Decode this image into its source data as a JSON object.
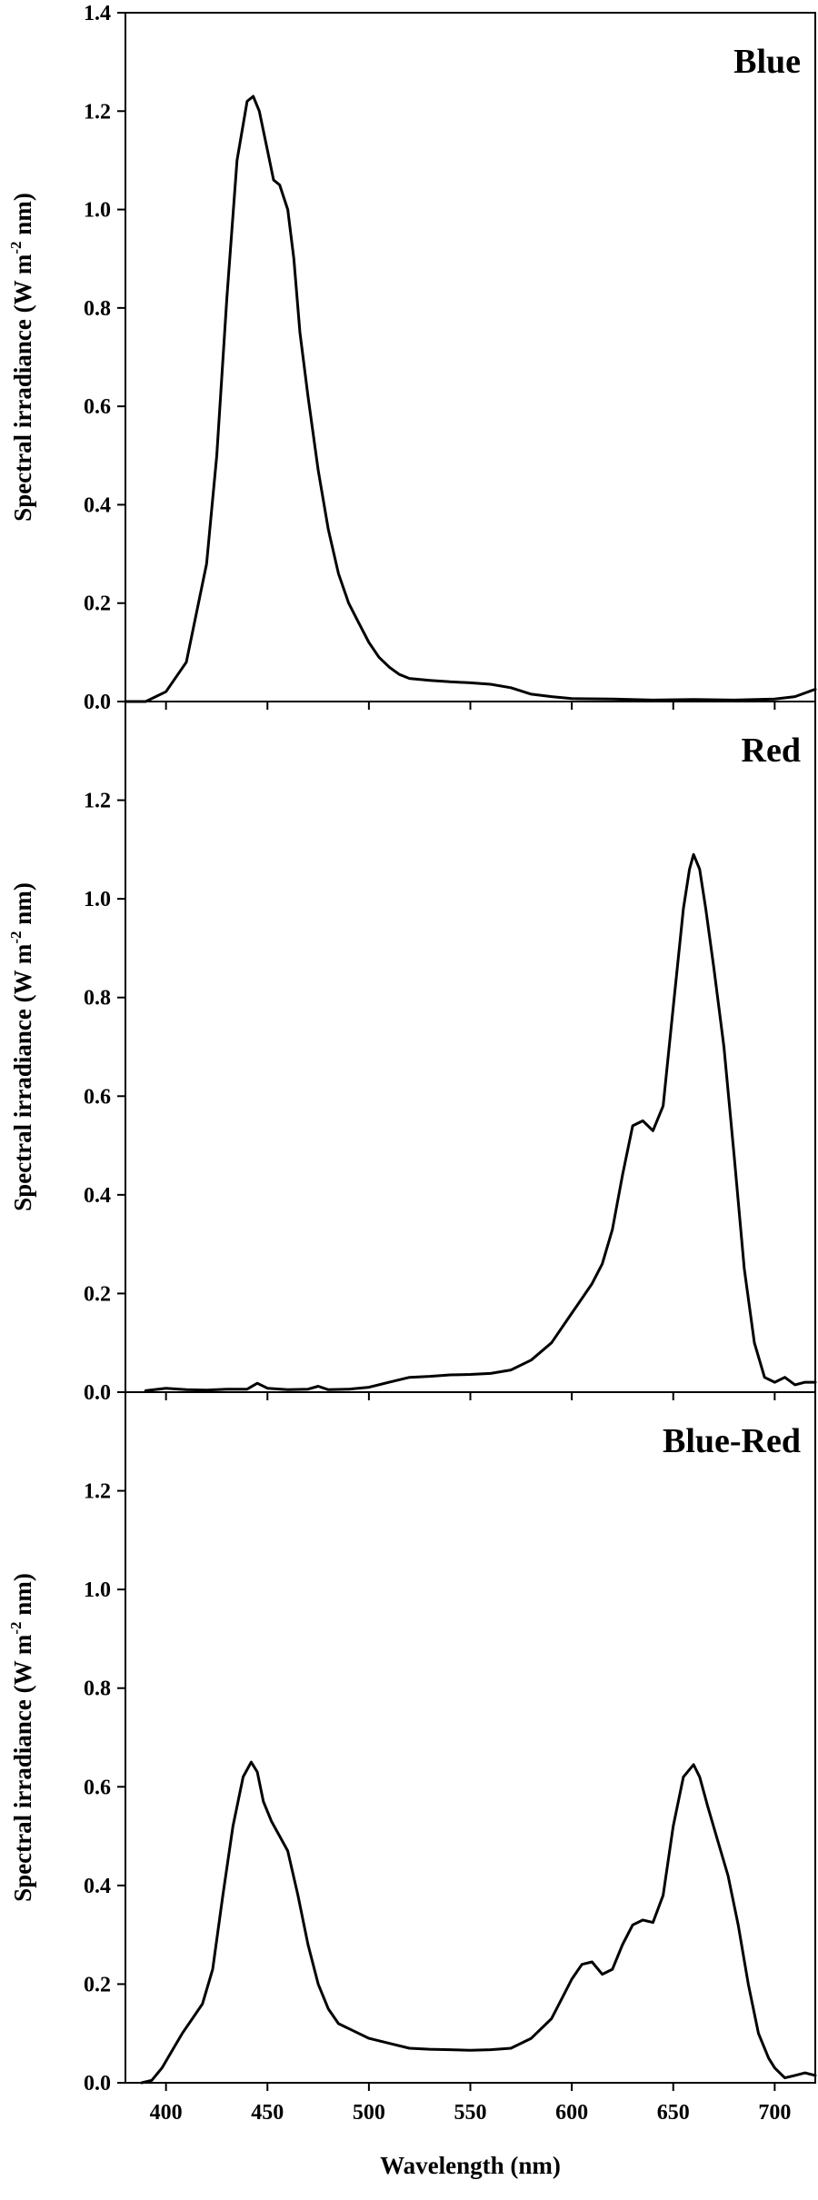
{
  "chart_data": [
    {
      "type": "line",
      "title": "Blue",
      "ylabel": {
        "main": "Spectral irradiance (W m",
        "sup": "-2",
        "tail": " nm)"
      },
      "xlim": [
        380,
        720
      ],
      "ylim": [
        0,
        1.4
      ],
      "y_ticks": [
        "0.0",
        "0.2",
        "0.4",
        "0.6",
        "0.8",
        "1.0",
        "1.2",
        "1.4"
      ],
      "x": [
        380,
        390,
        400,
        410,
        420,
        425,
        430,
        435,
        440,
        443,
        446,
        450,
        453,
        456,
        460,
        463,
        466,
        470,
        475,
        480,
        485,
        490,
        495,
        500,
        505,
        510,
        515,
        520,
        530,
        540,
        550,
        560,
        570,
        580,
        590,
        600,
        620,
        640,
        660,
        680,
        700,
        710,
        720
      ],
      "values": [
        0.0,
        0.0,
        0.02,
        0.08,
        0.28,
        0.5,
        0.82,
        1.1,
        1.22,
        1.23,
        1.2,
        1.12,
        1.06,
        1.05,
        1.0,
        0.9,
        0.75,
        0.62,
        0.47,
        0.35,
        0.26,
        0.2,
        0.16,
        0.12,
        0.09,
        0.07,
        0.055,
        0.047,
        0.043,
        0.04,
        0.038,
        0.035,
        0.028,
        0.015,
        0.01,
        0.006,
        0.005,
        0.003,
        0.004,
        0.003,
        0.005,
        0.01,
        0.025
      ]
    },
    {
      "type": "line",
      "title": "Red",
      "ylabel": {
        "main": "Spectral irradiance (W m",
        "sup": "-2",
        "tail": " nm)"
      },
      "xlim": [
        380,
        720
      ],
      "ylim": [
        0,
        1.4
      ],
      "y_ticks": [
        "0.0",
        "0.2",
        "0.4",
        "0.6",
        "0.8",
        "1.0",
        "1.2"
      ],
      "x": [
        390,
        400,
        410,
        420,
        430,
        440,
        445,
        450,
        460,
        470,
        475,
        480,
        490,
        500,
        510,
        520,
        530,
        540,
        550,
        560,
        570,
        580,
        590,
        600,
        605,
        610,
        615,
        620,
        625,
        630,
        635,
        640,
        645,
        650,
        655,
        658,
        660,
        663,
        666,
        670,
        675,
        680,
        685,
        690,
        695,
        700,
        705,
        710,
        715,
        720
      ],
      "values": [
        0.003,
        0.008,
        0.005,
        0.004,
        0.006,
        0.006,
        0.018,
        0.008,
        0.005,
        0.006,
        0.012,
        0.005,
        0.006,
        0.01,
        0.02,
        0.03,
        0.032,
        0.035,
        0.036,
        0.038,
        0.045,
        0.065,
        0.1,
        0.16,
        0.19,
        0.22,
        0.26,
        0.33,
        0.44,
        0.54,
        0.55,
        0.53,
        0.58,
        0.78,
        0.98,
        1.06,
        1.09,
        1.06,
        0.98,
        0.86,
        0.7,
        0.48,
        0.25,
        0.1,
        0.03,
        0.02,
        0.03,
        0.015,
        0.02,
        0.02
      ]
    },
    {
      "type": "line",
      "title": "Blue-Red",
      "ylabel": {
        "main": "Spectral irradiance (W m",
        "sup": "-2",
        "tail": " nm)"
      },
      "xlabel": "Wavelength (nm)",
      "xlim": [
        380,
        720
      ],
      "ylim": [
        0,
        1.4
      ],
      "y_ticks": [
        "0.0",
        "0.2",
        "0.4",
        "0.6",
        "0.8",
        "1.0",
        "1.2"
      ],
      "x_ticks": [
        "400",
        "450",
        "500",
        "550",
        "600",
        "650",
        "700"
      ],
      "x": [
        388,
        393,
        398,
        403,
        408,
        413,
        418,
        423,
        428,
        433,
        438,
        442,
        445,
        448,
        452,
        456,
        460,
        465,
        470,
        475,
        480,
        485,
        490,
        495,
        500,
        510,
        520,
        530,
        540,
        550,
        560,
        570,
        580,
        590,
        595,
        600,
        605,
        610,
        615,
        620,
        625,
        630,
        635,
        640,
        645,
        650,
        655,
        660,
        663,
        667,
        672,
        677,
        682,
        687,
        692,
        697,
        700,
        705,
        710,
        715,
        720
      ],
      "values": [
        0.0,
        0.005,
        0.03,
        0.065,
        0.1,
        0.13,
        0.16,
        0.23,
        0.38,
        0.52,
        0.62,
        0.65,
        0.63,
        0.57,
        0.53,
        0.5,
        0.47,
        0.38,
        0.28,
        0.2,
        0.15,
        0.12,
        0.11,
        0.1,
        0.09,
        0.08,
        0.07,
        0.068,
        0.067,
        0.066,
        0.067,
        0.07,
        0.09,
        0.13,
        0.17,
        0.21,
        0.24,
        0.245,
        0.22,
        0.23,
        0.28,
        0.32,
        0.33,
        0.325,
        0.38,
        0.52,
        0.62,
        0.645,
        0.62,
        0.56,
        0.49,
        0.42,
        0.32,
        0.2,
        0.1,
        0.05,
        0.03,
        0.01,
        0.015,
        0.02,
        0.015
      ]
    }
  ]
}
